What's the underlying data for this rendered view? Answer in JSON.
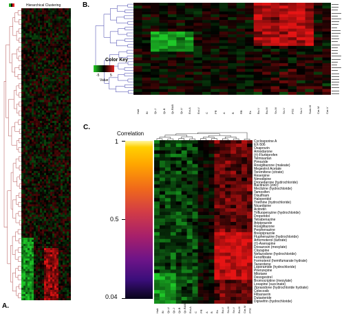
{
  "panels": {
    "a": {
      "label": "A.",
      "title": "Hierarchical Clustering",
      "legend_colors": [
        "#22aa22",
        "#000000",
        "#dd2222"
      ]
    },
    "b": {
      "label": "B.",
      "color_key": {
        "title": "Color Key",
        "min": "-5",
        "max": "5",
        "value_label": "Value",
        "colors": [
          "#22cc22",
          "#000000",
          "#dd2222"
        ]
      },
      "column_labels": [
        "Halt",
        "Bl",
        "Qr-J",
        "Qr-B",
        "Qr-RAB",
        "Qr-U",
        "Ect-A",
        "Ect-V",
        "C",
        "PR",
        "A",
        "B",
        "RB",
        "Ex",
        "Bu-V",
        "Bu-M",
        "Sn-M",
        "Sn-V",
        "PTE",
        "Sa-V",
        "Sum-M",
        "Car-M",
        "Car-V"
      ]
    },
    "c": {
      "label": "C.",
      "correlation": {
        "title": "Correlation",
        "max": "1",
        "mid": "0.5",
        "min": "0.04"
      },
      "drugs": [
        "Cyclosporine A",
        "EX-506",
        "Oxaprozin",
        "Amiodarone",
        "(±)-Flurbiprofen",
        "Telmisartan",
        "Pimozide",
        "Rosiglitazone (maleate)",
        "Megestrol Acetate",
        "Toremifene (citrate)",
        "Reserpine",
        "Nimodipine",
        "Dronedarone (hydrochloride)",
        "Bacitracin (zinc)",
        "Meclizine (hydrochloride)",
        "Tamoxifen",
        "Disulfiram",
        "Haloperidol",
        "Triethine (hydrochloride)",
        "Nicardipine",
        "Acitretin",
        "Trifluoperazine (hydrochloride)",
        "Droperidol",
        "Tetrabenazine",
        "Aripiprazole",
        "Rosiglitazone",
        "Perphenazine",
        "Brexpiprazole",
        "Fluphenazine (hydrochloride)",
        "Arformoterol (tartrate)",
        "(±)-Asenapine",
        "Doxazosin (mesylate)",
        "Clozapine",
        "Nefazodone (hydrochloride)",
        "Fenofibrate",
        "Formoterol (hemifumarate hydrate)",
        "Tazarotene",
        "Loperamide (hydrochloride)",
        "Pirenzepine",
        "Mitotane",
        "Desogestrel",
        "Bromocriptine (mesylate)",
        "Loxapine (succinate)",
        "Ziprasidone (hydrochloride hydrate)",
        "Celecoxib",
        "Flibanserin",
        "Dutasteride",
        "Dipivefrin (hydrochloride)"
      ],
      "column_labels": [
        "Halt",
        "Bl",
        "Qr-U",
        "Qr-J",
        "Qr-B",
        "Qr-RAB",
        "Ect-A",
        "C",
        "PR",
        "A",
        "B",
        "Ex",
        "Bu-V",
        "Sn-M",
        "Sn-V",
        "Bu-M",
        "Car-M",
        "PTE"
      ]
    }
  }
}
